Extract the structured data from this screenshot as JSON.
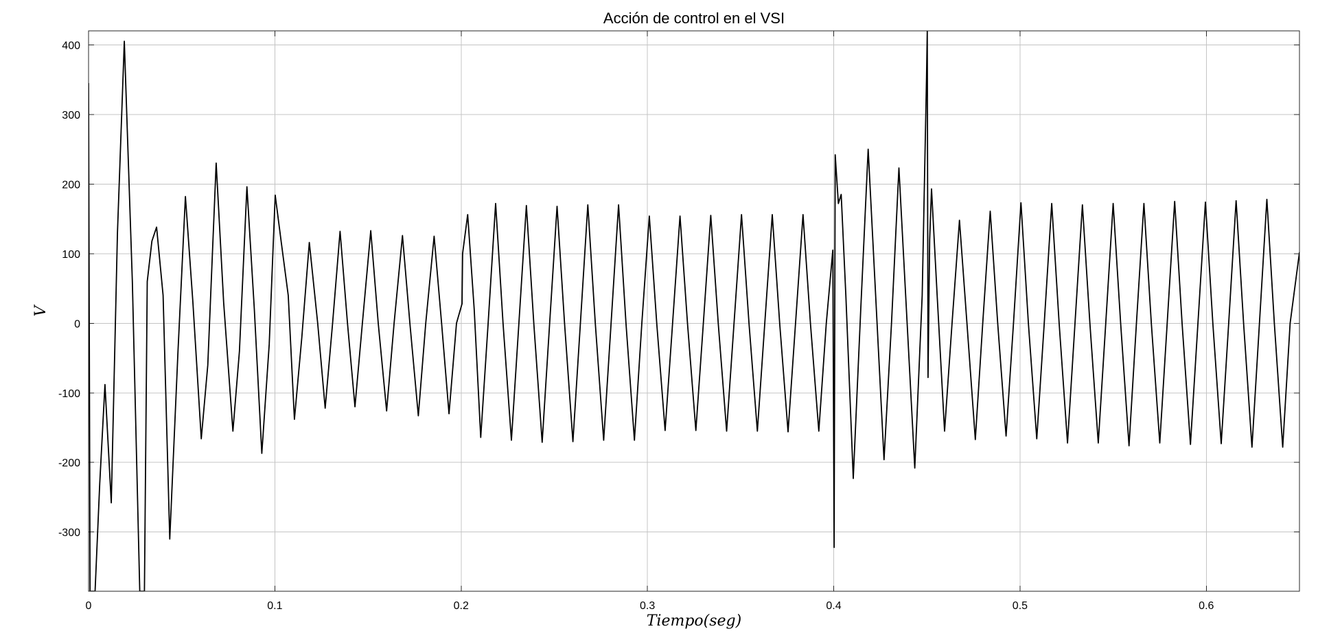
{
  "chart_data": {
    "type": "line",
    "title": "Acción de control en el VSI",
    "xlabel": "Tiempo(seg)",
    "ylabel": "V",
    "xlim": [
      0,
      0.65
    ],
    "ylim": [
      -385,
      420
    ],
    "xticks": [
      0,
      0.1,
      0.2,
      0.3,
      0.4,
      0.5,
      0.6
    ],
    "yticks": [
      -300,
      -200,
      -100,
      0,
      100,
      200,
      300,
      400
    ],
    "xtick_labels": [
      "0",
      "0.1",
      "0.2",
      "0.3",
      "0.4",
      "0.5",
      "0.6"
    ],
    "ytick_labels": [
      "-300",
      "-200",
      "-100",
      "0",
      "100",
      "200",
      "300",
      "400"
    ],
    "grid": true,
    "line_color": "#000000",
    "series": [
      {
        "points": [
          [
            0.0,
            345
          ],
          [
            0.0008,
            -385
          ],
          [
            0.0035,
            -385
          ],
          [
            0.006,
            -230
          ],
          [
            0.0088,
            -88
          ],
          [
            0.0122,
            -258
          ],
          [
            0.0155,
            130
          ],
          [
            0.0192,
            405
          ],
          [
            0.0235,
            60
          ],
          [
            0.0275,
            -385
          ],
          [
            0.03,
            -385
          ],
          [
            0.0315,
            60
          ],
          [
            0.034,
            118
          ],
          [
            0.0365,
            138
          ],
          [
            0.04,
            40
          ],
          [
            0.0436,
            -310
          ],
          [
            0.048,
            -40
          ],
          [
            0.052,
            182
          ],
          [
            0.056,
            30
          ],
          [
            0.0605,
            -166
          ],
          [
            0.064,
            -60
          ],
          [
            0.0685,
            230
          ],
          [
            0.0725,
            30
          ],
          [
            0.0775,
            -155
          ],
          [
            0.081,
            -40
          ],
          [
            0.085,
            196
          ],
          [
            0.089,
            20
          ],
          [
            0.093,
            -187
          ],
          [
            0.097,
            -30
          ],
          [
            0.1002,
            184
          ],
          [
            0.1035,
            115
          ],
          [
            0.1072,
            40
          ],
          [
            0.1105,
            -138
          ],
          [
            0.1145,
            -20
          ],
          [
            0.1185,
            116
          ],
          [
            0.123,
            0
          ],
          [
            0.127,
            -122
          ],
          [
            0.131,
            0
          ],
          [
            0.135,
            132
          ],
          [
            0.139,
            0
          ],
          [
            0.143,
            -120
          ],
          [
            0.147,
            0
          ],
          [
            0.1515,
            133
          ],
          [
            0.1555,
            0
          ],
          [
            0.16,
            -126
          ],
          [
            0.164,
            0
          ],
          [
            0.1685,
            126
          ],
          [
            0.1725,
            0
          ],
          [
            0.177,
            -133
          ],
          [
            0.181,
            0
          ],
          [
            0.1855,
            125
          ],
          [
            0.1895,
            0
          ],
          [
            0.1935,
            -130
          ],
          [
            0.1975,
            0
          ],
          [
            0.2005,
            28
          ],
          [
            0.2008,
            100
          ],
          [
            0.2035,
            156
          ],
          [
            0.207,
            20
          ],
          [
            0.2105,
            -164
          ],
          [
            0.2145,
            0
          ],
          [
            0.2185,
            172
          ],
          [
            0.2225,
            0
          ],
          [
            0.227,
            -168
          ],
          [
            0.231,
            0
          ],
          [
            0.235,
            169
          ],
          [
            0.239,
            0
          ],
          [
            0.2435,
            -171
          ],
          [
            0.2475,
            0
          ],
          [
            0.2515,
            168
          ],
          [
            0.2555,
            0
          ],
          [
            0.26,
            -170
          ],
          [
            0.264,
            0
          ],
          [
            0.268,
            170
          ],
          [
            0.272,
            0
          ],
          [
            0.2765,
            -168
          ],
          [
            0.2805,
            0
          ],
          [
            0.2845,
            170
          ],
          [
            0.2885,
            0
          ],
          [
            0.293,
            -168
          ],
          [
            0.297,
            0
          ],
          [
            0.301,
            154
          ],
          [
            0.305,
            0
          ],
          [
            0.3095,
            -154
          ],
          [
            0.3135,
            0
          ],
          [
            0.3175,
            154
          ],
          [
            0.3215,
            0
          ],
          [
            0.326,
            -154
          ],
          [
            0.33,
            0
          ],
          [
            0.334,
            155
          ],
          [
            0.338,
            0
          ],
          [
            0.3425,
            -155
          ],
          [
            0.3465,
            0
          ],
          [
            0.3505,
            156
          ],
          [
            0.3545,
            0
          ],
          [
            0.359,
            -155
          ],
          [
            0.363,
            0
          ],
          [
            0.367,
            156
          ],
          [
            0.371,
            0
          ],
          [
            0.3755,
            -156
          ],
          [
            0.3795,
            0
          ],
          [
            0.3835,
            156
          ],
          [
            0.3875,
            0
          ],
          [
            0.392,
            -155
          ],
          [
            0.396,
            0
          ],
          [
            0.3995,
            105
          ],
          [
            0.4002,
            -322
          ],
          [
            0.4008,
            242
          ],
          [
            0.4025,
            172
          ],
          [
            0.404,
            185
          ],
          [
            0.4065,
            40
          ],
          [
            0.4105,
            -223
          ],
          [
            0.4145,
            20
          ],
          [
            0.4185,
            250
          ],
          [
            0.4225,
            40
          ],
          [
            0.427,
            -196
          ],
          [
            0.431,
            0
          ],
          [
            0.435,
            223
          ],
          [
            0.439,
            20
          ],
          [
            0.4435,
            -208
          ],
          [
            0.4475,
            40
          ],
          [
            0.4498,
            352
          ],
          [
            0.4502,
            420
          ],
          [
            0.4506,
            -78
          ],
          [
            0.4515,
            120
          ],
          [
            0.4525,
            193
          ],
          [
            0.4555,
            40
          ],
          [
            0.4595,
            -155
          ],
          [
            0.4635,
            0
          ],
          [
            0.4675,
            148
          ],
          [
            0.4715,
            0
          ],
          [
            0.476,
            -167
          ],
          [
            0.48,
            0
          ],
          [
            0.484,
            161
          ],
          [
            0.488,
            0
          ],
          [
            0.4925,
            -162
          ],
          [
            0.4965,
            0
          ],
          [
            0.5005,
            173
          ],
          [
            0.5045,
            0
          ],
          [
            0.509,
            -166
          ],
          [
            0.513,
            0
          ],
          [
            0.517,
            172
          ],
          [
            0.521,
            0
          ],
          [
            0.5255,
            -172
          ],
          [
            0.5295,
            0
          ],
          [
            0.5335,
            170
          ],
          [
            0.5375,
            0
          ],
          [
            0.542,
            -172
          ],
          [
            0.546,
            0
          ],
          [
            0.55,
            172
          ],
          [
            0.554,
            0
          ],
          [
            0.5585,
            -176
          ],
          [
            0.5625,
            0
          ],
          [
            0.5665,
            172
          ],
          [
            0.5705,
            0
          ],
          [
            0.575,
            -172
          ],
          [
            0.579,
            0
          ],
          [
            0.583,
            175
          ],
          [
            0.587,
            0
          ],
          [
            0.5915,
            -174
          ],
          [
            0.5955,
            0
          ],
          [
            0.5995,
            174
          ],
          [
            0.6035,
            0
          ],
          [
            0.608,
            -173
          ],
          [
            0.612,
            0
          ],
          [
            0.616,
            176
          ],
          [
            0.62,
            0
          ],
          [
            0.6245,
            -178
          ],
          [
            0.6285,
            0
          ],
          [
            0.6325,
            178
          ],
          [
            0.6365,
            0
          ],
          [
            0.641,
            -178
          ],
          [
            0.645,
            0
          ],
          [
            0.65,
            102
          ]
        ]
      }
    ]
  }
}
